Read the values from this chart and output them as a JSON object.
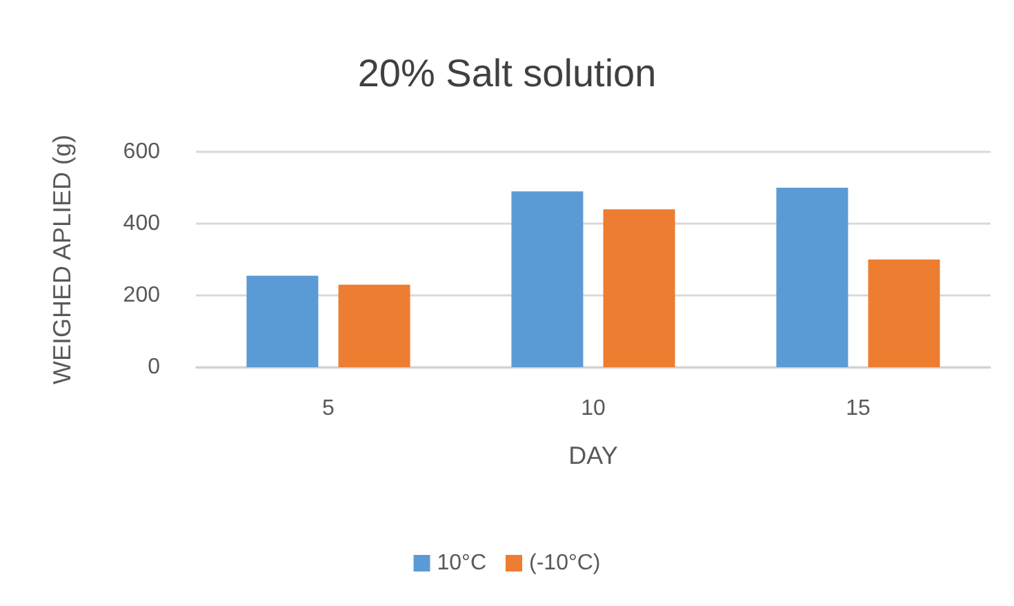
{
  "chart_data": {
    "type": "bar",
    "title": "20% Salt solution",
    "xlabel": "DAY",
    "ylabel": "WEIGHED APLIED (g)",
    "categories": [
      "5",
      "10",
      "15"
    ],
    "series": [
      {
        "name": "10°C",
        "color": "#5b9bd5",
        "values": [
          255,
          490,
          500
        ]
      },
      {
        "name": "(-10°C)",
        "color": "#ed7d31",
        "values": [
          230,
          440,
          300
        ]
      }
    ],
    "ylim": [
      0,
      600
    ],
    "yticks": [
      0,
      200,
      400,
      600
    ],
    "grid": "y",
    "legend": "bottom"
  }
}
